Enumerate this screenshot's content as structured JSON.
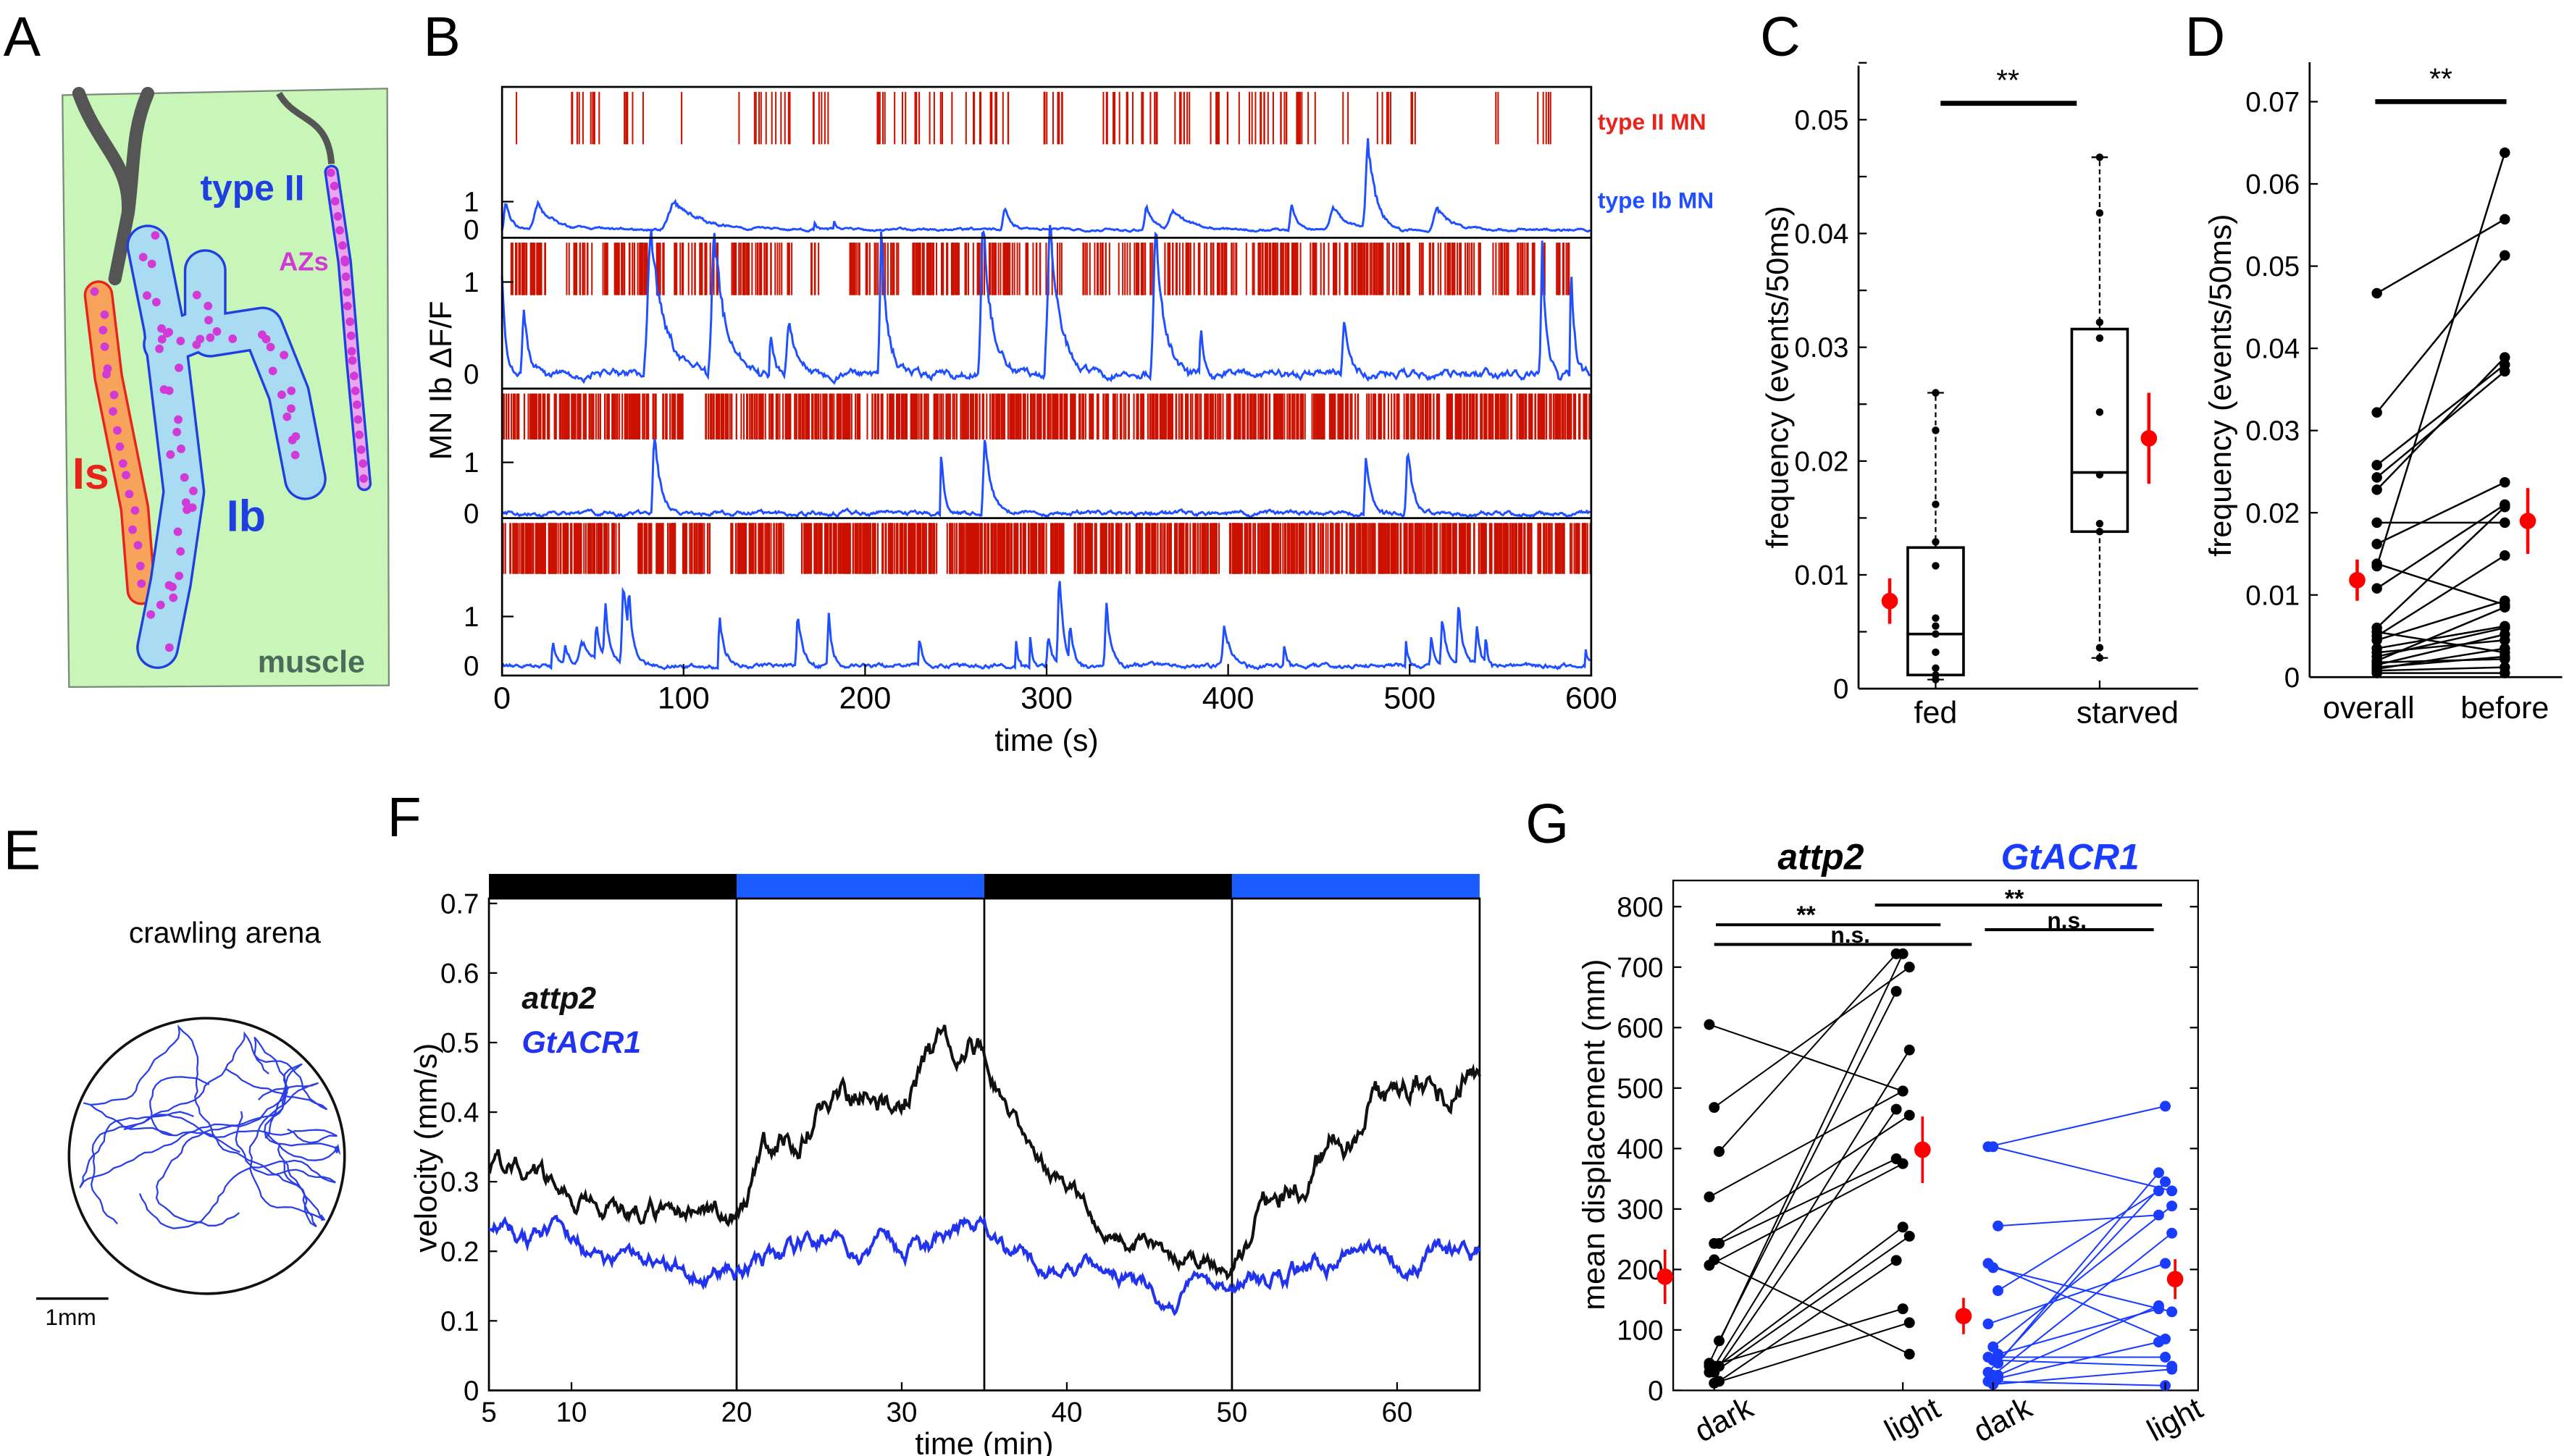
{
  "panel_labels": {
    "a": "A",
    "b": "B",
    "c": "C",
    "d": "D",
    "e": "E",
    "f": "F",
    "g": "G"
  },
  "panel_a": {
    "type_ii": "type II",
    "azs": "AZs",
    "is": "Is",
    "ib": "Ib",
    "muscle": "muscle",
    "colors": {
      "muscle": "#c8f5b8",
      "is_fill": "#f7a35c",
      "is_edge": "#e8231a",
      "ib_fill": "#a9dcf2",
      "ib_edge": "#1f3fe0",
      "az": "#d13ad6",
      "nerve": "#555555"
    }
  },
  "panel_e": {
    "title": "crawling arena",
    "scale_bar": "1mm",
    "color": "#2a3fe6"
  },
  "chart_data": [
    {
      "id": "B",
      "type": "line",
      "xlabel": "time (s)",
      "ylabel": "MN Ib ΔF/F",
      "xlim": [
        0,
        600
      ],
      "xticks": [
        0,
        100,
        200,
        300,
        400,
        500,
        600
      ],
      "legend": {
        "spikes": "type II MN",
        "trace": "type Ib MN"
      },
      "colors": {
        "spikes": "#cc1100",
        "trace": "#1f4fff"
      },
      "rows": [
        {
          "yticks": [
            "1",
            "0"
          ],
          "spike_rate": 0.45,
          "bursts": [
            [
              2,
              8
            ],
            [
              36,
              55
            ],
            [
              60,
              80
            ],
            [
              95,
              105
            ],
            [
              130,
              160
            ],
            [
              170,
              180
            ],
            [
              200,
              280
            ],
            [
              290,
              310
            ],
            [
              330,
              380
            ],
            [
              390,
              450
            ],
            [
              460,
              470
            ],
            [
              480,
              490
            ],
            [
              500,
              505
            ],
            [
              545,
              550
            ],
            [
              570,
              580
            ]
          ],
          "peaks": [
            [
              2,
              1,
              4
            ],
            [
              20,
              0.9,
              12
            ],
            [
              95,
              1.0,
              20
            ],
            [
              172,
              0.3,
              1
            ],
            [
              183,
              0.25,
              1
            ],
            [
              277,
              0.8,
              5
            ],
            [
              355,
              0.85,
              5
            ],
            [
              370,
              0.7,
              12
            ],
            [
              435,
              0.9,
              4
            ],
            [
              458,
              0.8,
              10
            ],
            [
              477,
              3.2,
              6
            ],
            [
              515,
              0.8,
              10
            ]
          ]
        },
        {
          "yticks": [
            "1",
            "0"
          ],
          "spike_rate": 1.1,
          "bursts": [
            [
              5,
              25
            ],
            [
              35,
              50
            ],
            [
              55,
              90
            ],
            [
              95,
              120
            ],
            [
              125,
              160
            ],
            [
              170,
              175
            ],
            [
              190,
              220
            ],
            [
              225,
              310
            ],
            [
              320,
              360
            ],
            [
              365,
              405
            ],
            [
              410,
              440
            ],
            [
              445,
              500
            ],
            [
              505,
              540
            ],
            [
              545,
              575
            ],
            [
              580,
              588
            ]
          ],
          "peaks": [
            [
              0,
              1.2,
              2
            ],
            [
              12,
              0.7,
              4
            ],
            [
              82,
              1.6,
              10
            ],
            [
              117,
              1.6,
              8
            ],
            [
              148,
              0.45,
              2
            ],
            [
              158,
              0.6,
              6
            ],
            [
              209,
              1.6,
              4
            ],
            [
              265,
              1.7,
              6
            ],
            [
              302,
              1.6,
              8
            ],
            [
              360,
              1.65,
              6
            ],
            [
              385,
              0.5,
              2
            ],
            [
              464,
              0.6,
              4
            ],
            [
              573,
              1.4,
              3
            ],
            [
              589,
              1.2,
              2
            ]
          ]
        },
        {
          "yticks": [
            "1",
            "0"
          ],
          "spike_rate": 1.6,
          "bursts": [
            [
              0,
              85
            ],
            [
              88,
              100
            ],
            [
              112,
              600
            ]
          ],
          "peaks": [
            [
              84,
              1.6,
              4
            ],
            [
              242,
              1.2,
              2
            ],
            [
              266,
              1.6,
              4
            ],
            [
              476,
              1.25,
              3
            ],
            [
              499,
              1.2,
              4
            ]
          ]
        },
        {
          "yticks": [
            "1",
            "0"
          ],
          "spike_rate": 2.2,
          "bursts": [
            [
              0,
              65
            ],
            [
              75,
              115
            ],
            [
              125,
              155
            ],
            [
              165,
              240
            ],
            [
              245,
              310
            ],
            [
              315,
              395
            ],
            [
              400,
              600
            ]
          ],
          "peaks": [
            [
              28,
              0.5,
              2
            ],
            [
              35,
              0.4,
              3
            ],
            [
              44,
              0.5,
              8
            ],
            [
              52,
              0.8,
              2
            ],
            [
              57,
              1.1,
              3
            ],
            [
              67,
              1.7,
              4
            ],
            [
              70,
              0.8,
              2
            ],
            [
              120,
              1.0,
              3
            ],
            [
              163,
              1.05,
              3
            ],
            [
              180,
              1.0,
              2
            ],
            [
              230,
              0.55,
              2
            ],
            [
              283,
              0.7,
              1
            ],
            [
              291,
              0.65,
              1
            ],
            [
              301,
              0.6,
              3
            ],
            [
              307,
              1.8,
              3
            ],
            [
              313,
              0.7,
              2
            ],
            [
              333,
              1.25,
              3
            ],
            [
              398,
              0.8,
              4
            ],
            [
              431,
              0.45,
              1
            ],
            [
              498,
              0.5,
              1
            ],
            [
              512,
              0.6,
              2
            ],
            [
              518,
              1.0,
              3
            ],
            [
              527,
              1.25,
              3
            ],
            [
              537,
              0.85,
              2
            ],
            [
              542,
              0.55,
              1
            ],
            [
              597,
              0.35,
              1
            ]
          ]
        }
      ]
    },
    {
      "id": "C",
      "type": "box",
      "ylabel": "frequency (events/50ms)",
      "ylim": [
        0,
        0.055
      ],
      "yticks": [
        "0",
        "0.01",
        "0.02",
        "0.03",
        "0.04",
        "0.05"
      ],
      "significance": "**",
      "groups": [
        {
          "label": "fed",
          "whisker": [
            0.0008,
            0.026
          ],
          "q1": 0.0012,
          "median": 0.0048,
          "q3": 0.0124,
          "points": [
            0.026,
            0.0227,
            0.0162,
            0.0129,
            0.0108,
            0.0062,
            0.0055,
            0.0048,
            0.0032,
            0.0018,
            0.0012,
            0.0008
          ],
          "mean": 0.0077,
          "err": 0.002
        },
        {
          "label": "starved",
          "whisker": [
            0.0027,
            0.0467
          ],
          "q1": 0.0138,
          "median": 0.019,
          "q3": 0.0316,
          "points": [
            0.0467,
            0.0418,
            0.0322,
            0.0308,
            0.0243,
            0.0188,
            0.0145,
            0.0138,
            0.0036,
            0.0027
          ],
          "mean": 0.022,
          "err": 0.004
        }
      ]
    },
    {
      "id": "D",
      "type": "paired",
      "ylabel": "frequency (events/50ms)",
      "ylim": [
        0,
        0.07
      ],
      "yticks": [
        "0",
        "0.01",
        "0.02",
        "0.03",
        "0.04",
        "0.05",
        "0.06",
        "0.07"
      ],
      "categories": [
        "overall",
        "before"
      ],
      "significance": "**",
      "pairs": [
        [
          0.0467,
          0.0557
        ],
        [
          0.0322,
          0.0513
        ],
        [
          0.0135,
          0.0638
        ],
        [
          0.0258,
          0.038
        ],
        [
          0.0243,
          0.0372
        ],
        [
          0.0228,
          0.0389
        ],
        [
          0.0188,
          0.0188
        ],
        [
          0.0162,
          0.0237
        ],
        [
          0.0108,
          0.021
        ],
        [
          0.0138,
          0.0088
        ],
        [
          0.006,
          0.0207
        ],
        [
          0.005,
          0.0148
        ],
        [
          0.0055,
          0.003
        ],
        [
          0.0045,
          0.0093
        ],
        [
          0.0035,
          0.0062
        ],
        [
          0.003,
          0.0045
        ],
        [
          0.0025,
          0.006
        ],
        [
          0.002,
          0.0085
        ],
        [
          0.0018,
          0.0022
        ],
        [
          0.0015,
          0.0052
        ],
        [
          0.0012,
          0.0025
        ],
        [
          0.001,
          0.0035
        ],
        [
          0.0008,
          0.0012
        ],
        [
          0.0005,
          0.0005
        ]
      ],
      "means": [
        [
          0.0118,
          0.0025
        ],
        [
          0.019,
          0.004
        ]
      ]
    },
    {
      "id": "F",
      "type": "line",
      "xlabel": "time (min)",
      "ylabel": "velocity (mm/s)",
      "xlim": [
        5,
        65
      ],
      "ylim": [
        0,
        0.7
      ],
      "xticks": [
        "5",
        "10",
        "20",
        "30",
        "40",
        "50",
        "60"
      ],
      "yticks": [
        "0",
        "0.1",
        "0.2",
        "0.3",
        "0.4",
        "0.5",
        "0.6",
        "0.7"
      ],
      "epochs": [
        [
          5,
          20,
          false
        ],
        [
          20,
          35,
          true
        ],
        [
          35,
          50,
          false
        ],
        [
          50,
          65,
          true
        ]
      ],
      "series": [
        {
          "name": "attp2",
          "color": "#111111",
          "epoch_means": [
            0.24,
            0.5,
            0.14,
            0.49
          ],
          "start": 0.33
        },
        {
          "name": "GtACR1",
          "color": "#2233ee",
          "epoch_means": [
            0.17,
            0.22,
            0.13,
            0.21
          ],
          "start": 0.24
        }
      ],
      "bar_colors": {
        "dark": "#000000",
        "light": "#1a5cff"
      }
    },
    {
      "id": "G",
      "type": "paired",
      "ylabel": "mean displacement (mm)",
      "ylim": [
        0,
        800
      ],
      "yticks": [
        "0",
        "100",
        "200",
        "300",
        "400",
        "500",
        "600",
        "700",
        "800"
      ],
      "categories": [
        "dark",
        "light",
        "dark",
        "light"
      ],
      "groups": [
        {
          "name": "attp2",
          "color": "#000000",
          "pairs": [
            [
              605,
              495
            ],
            [
              468,
              700
            ],
            [
              395,
              722
            ],
            [
              320,
              495
            ],
            [
              243,
              455
            ],
            [
              243,
              383
            ],
            [
              207,
              375
            ],
            [
              216,
              60
            ],
            [
              82,
              660
            ],
            [
              45,
              722
            ],
            [
              40,
              563
            ],
            [
              40,
              465
            ],
            [
              30,
              270
            ],
            [
              30,
              255
            ],
            [
              15,
              215
            ],
            [
              40,
              135
            ],
            [
              12,
              112
            ]
          ],
          "means": [
            [
              188,
              45
            ],
            [
              398,
              55
            ]
          ]
        },
        {
          "name": "GtACR1",
          "color": "#1a3cff",
          "pairs": [
            [
              403,
              470
            ],
            [
              403,
              330
            ],
            [
              272,
              290
            ],
            [
              210,
              85
            ],
            [
              203,
              130
            ],
            [
              165,
              330
            ],
            [
              110,
              210
            ],
            [
              72,
              305
            ],
            [
              60,
              135
            ],
            [
              55,
              55
            ],
            [
              50,
              40
            ],
            [
              45,
              360
            ],
            [
              30,
              345
            ],
            [
              25,
              260
            ],
            [
              20,
              80
            ],
            [
              15,
              8
            ],
            [
              10,
              35
            ],
            [
              25,
              140
            ]
          ],
          "means": [
            [
              123,
              30
            ],
            [
              184,
              33
            ]
          ]
        }
      ],
      "significance": [
        {
          "text": "**"
        },
        {
          "text": "n.s."
        },
        {
          "text": "**"
        },
        {
          "text": "n.s."
        }
      ]
    }
  ]
}
